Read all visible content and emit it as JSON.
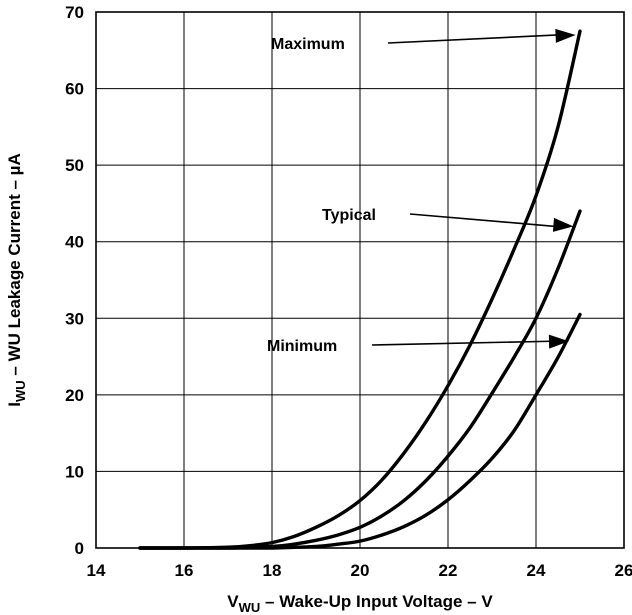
{
  "chart_data": {
    "type": "line",
    "title": "",
    "xlabel": {
      "prefix": "V",
      "subscript": "WU",
      "suffix": " – Wake-Up Input Voltage – V"
    },
    "ylabel": {
      "prefix": "I",
      "subscript": "WU",
      "suffix": " – WU Leakage Current – µA"
    },
    "xlim": [
      14,
      26
    ],
    "ylim": [
      0,
      70
    ],
    "xticks": [
      "14",
      "16",
      "18",
      "20",
      "22",
      "24",
      "26"
    ],
    "yticks": [
      "0",
      "10",
      "20",
      "30",
      "40",
      "50",
      "60",
      "70"
    ],
    "grid": true,
    "series": [
      {
        "name": "Maximum",
        "x": [
          15,
          16,
          17,
          17.5,
          18,
          18.5,
          19,
          19.5,
          20,
          20.5,
          21,
          21.5,
          22,
          22.5,
          23,
          23.5,
          24,
          24.5,
          25
        ],
        "y": [
          0,
          0,
          0.1,
          0.3,
          0.7,
          1.5,
          2.7,
          4.2,
          6.2,
          8.9,
          12.4,
          16.5,
          21.2,
          26.5,
          32.5,
          39.0,
          46.0,
          55.0,
          67.5
        ]
      },
      {
        "name": "Typical",
        "x": [
          15,
          16,
          17,
          18,
          18.5,
          19,
          19.5,
          20,
          20.5,
          21,
          21.5,
          22,
          22.5,
          23,
          23.5,
          24,
          24.5,
          25
        ],
        "y": [
          0,
          0,
          0,
          0.2,
          0.5,
          1.0,
          1.7,
          2.7,
          4.2,
          6.2,
          8.8,
          12.0,
          15.7,
          20.2,
          24.9,
          30.0,
          36.5,
          44.0
        ]
      },
      {
        "name": "Minimum",
        "x": [
          15,
          16,
          17,
          18,
          19,
          19.5,
          20,
          20.5,
          21,
          21.5,
          22,
          22.5,
          23,
          23.5,
          24,
          24.5,
          25
        ],
        "y": [
          0,
          0,
          0,
          0,
          0.2,
          0.5,
          0.9,
          1.7,
          2.8,
          4.3,
          6.3,
          8.8,
          11.7,
          15.3,
          20.0,
          24.9,
          30.5
        ]
      }
    ],
    "annotations": [
      {
        "text": "Maximum",
        "arrow_to": [
          24.9,
          67.0
        ]
      },
      {
        "text": "Typical",
        "arrow_to": [
          24.85,
          42.0
        ]
      },
      {
        "text": "Minimum",
        "arrow_to": [
          24.75,
          27.0
        ]
      }
    ]
  }
}
